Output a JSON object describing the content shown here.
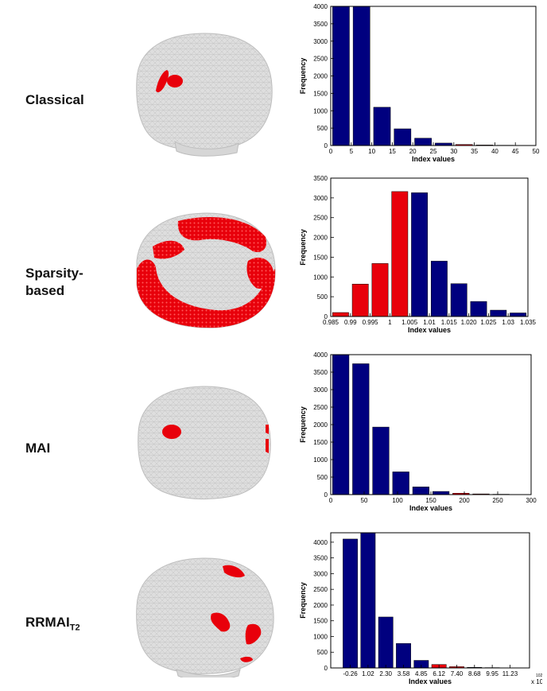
{
  "rows": [
    {
      "label": "Classical"
    },
    {
      "label_line1": "Sparsity-",
      "label_line2": "based"
    },
    {
      "label": "MAI"
    },
    {
      "label_main": "RRMAI",
      "label_sub": "T2"
    }
  ],
  "colors": {
    "bar_blue": "#00007f",
    "bar_red": "#e8000b",
    "mesh": "#d8d8d8",
    "mesh_line": "#c2c2c2",
    "spot": "#e8000b"
  },
  "chart_data": [
    {
      "type": "bar",
      "title": "",
      "xlabel": "Index values",
      "ylabel": "Frequency",
      "xlim": [
        0,
        50
      ],
      "ylim": [
        0,
        4000
      ],
      "xticks": [
        "0",
        "5",
        "10",
        "15",
        "20",
        "25",
        "30",
        "35",
        "40",
        "45",
        "50"
      ],
      "yticks": [
        "0",
        "500",
        "1000",
        "1500",
        "2000",
        "2500",
        "3000",
        "3500",
        "4000"
      ],
      "bars": [
        {
          "x": 2.5,
          "value": 4100,
          "color": "blue"
        },
        {
          "x": 7.5,
          "value": 4030,
          "color": "blue"
        },
        {
          "x": 12.5,
          "value": 1100,
          "color": "blue"
        },
        {
          "x": 17.5,
          "value": 480,
          "color": "blue"
        },
        {
          "x": 22.5,
          "value": 210,
          "color": "blue"
        },
        {
          "x": 27.5,
          "value": 70,
          "color": "blue"
        },
        {
          "x": 32.5,
          "value": 30,
          "color": "red"
        },
        {
          "x": 37.5,
          "value": 15,
          "color": "red"
        },
        {
          "x": 42.5,
          "value": 8,
          "color": "blue"
        },
        {
          "x": 47.5,
          "value": 5,
          "color": "blue"
        }
      ]
    },
    {
      "type": "bar",
      "title": "",
      "xlabel": "Index values",
      "ylabel": "Frequency",
      "xlim": [
        0.985,
        1.035
      ],
      "ylim": [
        0,
        3500
      ],
      "xticks": [
        "0.985",
        "0.99",
        "0.995",
        "1",
        "1.005",
        "1.01",
        "1.015",
        "1.020",
        "1.025",
        "1.03",
        "1.035"
      ],
      "yticks": [
        "0",
        "500",
        "1000",
        "1500",
        "2000",
        "2500",
        "3000",
        "3500"
      ],
      "bars": [
        {
          "x": 0.9875,
          "value": 100,
          "color": "red"
        },
        {
          "x": 0.9925,
          "value": 820,
          "color": "red"
        },
        {
          "x": 0.9975,
          "value": 1340,
          "color": "red"
        },
        {
          "x": 1.0025,
          "value": 3160,
          "color": "red"
        },
        {
          "x": 1.0075,
          "value": 3130,
          "color": "blue"
        },
        {
          "x": 1.0125,
          "value": 1400,
          "color": "blue"
        },
        {
          "x": 1.0175,
          "value": 830,
          "color": "blue"
        },
        {
          "x": 1.0225,
          "value": 380,
          "color": "blue"
        },
        {
          "x": 1.0275,
          "value": 160,
          "color": "blue"
        },
        {
          "x": 1.0325,
          "value": 90,
          "color": "blue"
        }
      ]
    },
    {
      "type": "bar",
      "title": "",
      "xlabel": "Index values",
      "ylabel": "Frequency",
      "xlim": [
        0,
        300
      ],
      "ylim": [
        0,
        4000
      ],
      "xticks": [
        "0",
        "50",
        "100",
        "150",
        "200",
        "250",
        "300"
      ],
      "yticks": [
        "0",
        "500",
        "1000",
        "1500",
        "2000",
        "2500",
        "3000",
        "3500",
        "4000"
      ],
      "bars": [
        {
          "x": 15,
          "value": 4000,
          "color": "blue"
        },
        {
          "x": 45,
          "value": 3740,
          "color": "blue"
        },
        {
          "x": 75,
          "value": 1930,
          "color": "blue"
        },
        {
          "x": 105,
          "value": 650,
          "color": "blue"
        },
        {
          "x": 135,
          "value": 220,
          "color": "blue"
        },
        {
          "x": 165,
          "value": 90,
          "color": "blue"
        },
        {
          "x": 195,
          "value": 40,
          "color": "red"
        },
        {
          "x": 225,
          "value": 20,
          "color": "red"
        },
        {
          "x": 255,
          "value": 10,
          "color": "blue"
        },
        {
          "x": 285,
          "value": 5,
          "color": "blue"
        }
      ]
    },
    {
      "type": "bar",
      "title": "",
      "xlabel": "Index values",
      "ylabel": "Frequency",
      "xaxis_multiplier": "x 10",
      "xaxis_multiplier_exp": "102",
      "ylim": [
        0,
        4300
      ],
      "xticks": [
        "-0.26",
        "1.02",
        "2.30",
        "3.58",
        "4.85",
        "6.12",
        "7.40",
        "8.68",
        "9.95",
        "11.23"
      ],
      "yticks": [
        "0",
        "500",
        "1000",
        "1500",
        "2000",
        "2500",
        "3000",
        "3500",
        "4000"
      ],
      "bars": [
        {
          "x": "-0.26",
          "value": 4100,
          "color": "blue"
        },
        {
          "x": "1.02",
          "value": 4300,
          "color": "blue"
        },
        {
          "x": "2.30",
          "value": 1620,
          "color": "blue"
        },
        {
          "x": "3.58",
          "value": 780,
          "color": "blue"
        },
        {
          "x": "4.85",
          "value": 240,
          "color": "blue"
        },
        {
          "x": "6.12",
          "value": 110,
          "color": "red"
        },
        {
          "x": "7.40",
          "value": 40,
          "color": "red"
        },
        {
          "x": "8.68",
          "value": 20,
          "color": "blue"
        },
        {
          "x": "9.95",
          "value": 10,
          "color": "blue"
        },
        {
          "x": "11.23",
          "value": 5,
          "color": "blue"
        }
      ]
    }
  ]
}
